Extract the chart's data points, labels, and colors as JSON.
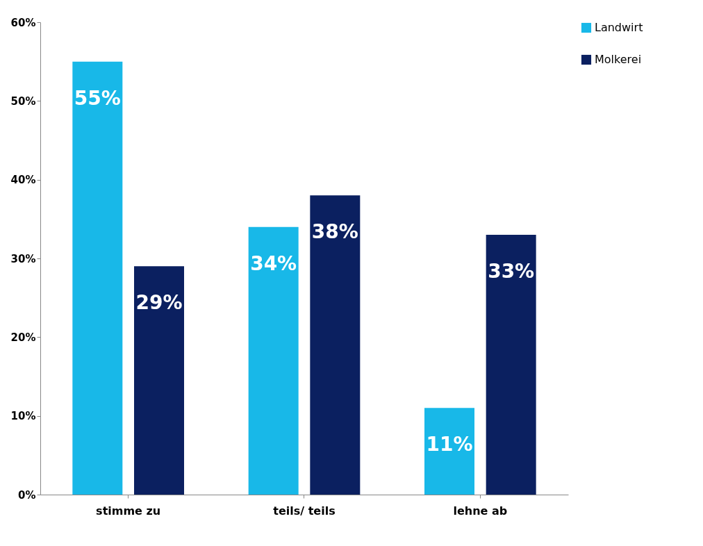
{
  "chart_data": {
    "type": "bar",
    "categories": [
      "stimme zu",
      "teils/ teils",
      "lehne ab"
    ],
    "series": [
      {
        "name": "Landwirt",
        "color": "#18b8e8",
        "values": [
          55,
          34,
          11
        ],
        "value_labels": [
          "55%",
          "34%",
          "11%"
        ]
      },
      {
        "name": "Molkerei",
        "color": "#0b2060",
        "values": [
          29,
          38,
          33
        ],
        "value_labels": [
          "29%",
          "38%",
          "33%"
        ]
      }
    ],
    "ylim": [
      0,
      60
    ],
    "yticks": [
      {
        "value": 0,
        "label": "0%"
      },
      {
        "value": 10,
        "label": "10%"
      },
      {
        "value": 20,
        "label": "20%"
      },
      {
        "value": 30,
        "label": "30%"
      },
      {
        "value": 40,
        "label": "40%"
      },
      {
        "value": 50,
        "label": "50%"
      },
      {
        "value": 60,
        "label": "60%"
      }
    ],
    "grid": false,
    "legend": "right"
  }
}
